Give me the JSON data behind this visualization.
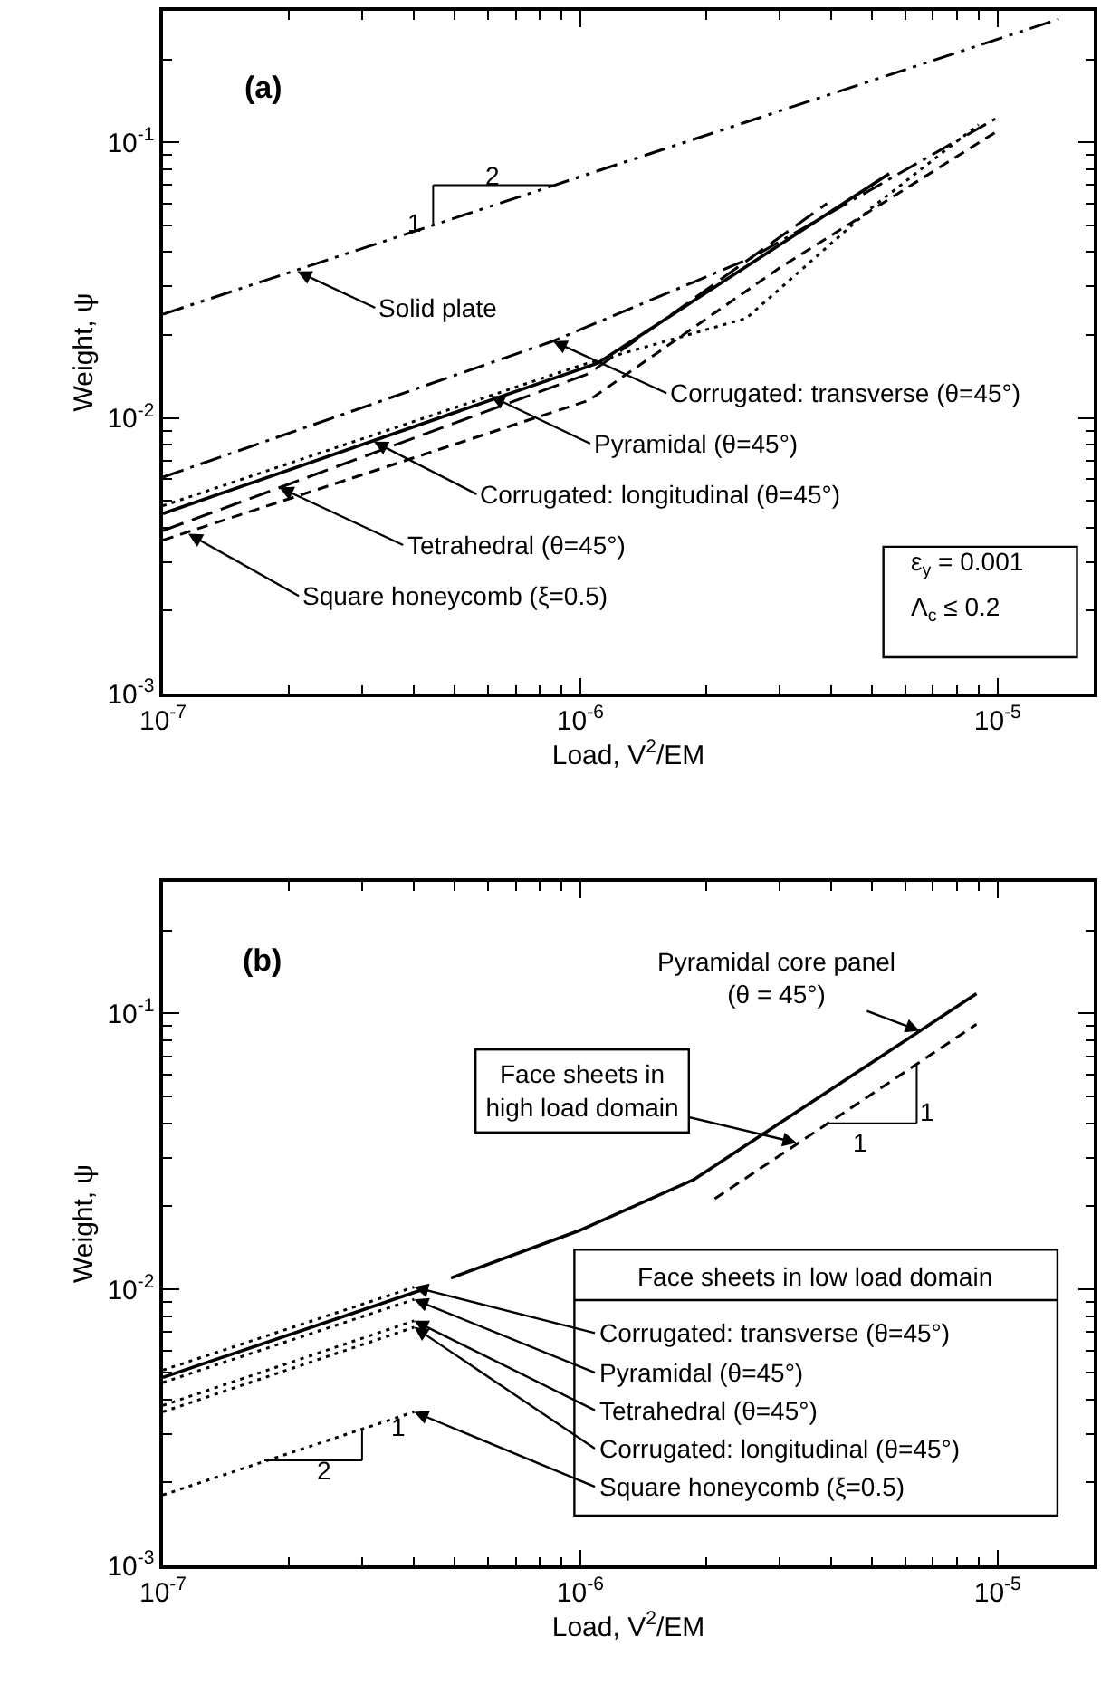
{
  "chart_data": [
    {
      "type": "line",
      "title": "(a)",
      "xlabel": "Load, V$^{2}$/EM",
      "ylabel": "Weight, ψ",
      "log": "xy",
      "xlim": [
        1e-07,
        1.7e-05
      ],
      "ylim": [
        0.001,
        0.3
      ],
      "xticks": [
        {
          "value": 1e-07,
          "label": "10$^{-7}$"
        },
        {
          "value": 2e-07,
          "label": null
        },
        {
          "value": 3e-07,
          "label": null
        },
        {
          "value": 4e-07,
          "label": null
        },
        {
          "value": 5e-07,
          "label": null
        },
        {
          "value": 6e-07,
          "label": null
        },
        {
          "value": 7e-07,
          "label": null
        },
        {
          "value": 8e-07,
          "label": null
        },
        {
          "value": 9e-07,
          "label": null
        },
        {
          "value": 1e-06,
          "label": "10$^{-6}$"
        },
        {
          "value": 2e-06,
          "label": null
        },
        {
          "value": 3e-06,
          "label": null
        },
        {
          "value": 4e-06,
          "label": null
        },
        {
          "value": 5e-06,
          "label": null
        },
        {
          "value": 6e-06,
          "label": null
        },
        {
          "value": 7e-06,
          "label": null
        },
        {
          "value": 8e-06,
          "label": null
        },
        {
          "value": 9e-06,
          "label": null
        },
        {
          "value": 1e-05,
          "label": "10$^{-5}$"
        }
      ],
      "yticks": [
        {
          "value": 0.001,
          "label": "10$^{-3}$"
        },
        {
          "value": 0.002,
          "label": null
        },
        {
          "value": 0.003,
          "label": null
        },
        {
          "value": 0.004,
          "label": null
        },
        {
          "value": 0.005,
          "label": null
        },
        {
          "value": 0.006,
          "label": null
        },
        {
          "value": 0.007,
          "label": null
        },
        {
          "value": 0.008,
          "label": null
        },
        {
          "value": 0.009,
          "label": null
        },
        {
          "value": 0.01,
          "label": "10$^{-2}$"
        },
        {
          "value": 0.02,
          "label": null
        },
        {
          "value": 0.03,
          "label": null
        },
        {
          "value": 0.04,
          "label": null
        },
        {
          "value": 0.05,
          "label": null
        },
        {
          "value": 0.06,
          "label": null
        },
        {
          "value": 0.07,
          "label": null
        },
        {
          "value": 0.08,
          "label": null
        },
        {
          "value": 0.09,
          "label": null
        },
        {
          "value": 0.1,
          "label": "10$^{-1}$"
        },
        {
          "value": 0.2,
          "label": null
        }
      ],
      "series": [
        {
          "color": "#000000",
          "line_style": "dashdotdot",
          "x": [
            1e-07,
            1.4e-05
          ],
          "values": [
            0.0238,
            0.28
          ]
        },
        {
          "color": "#000000",
          "line_style": "dashdot",
          "x": [
            1e-07,
            8.6e-07,
            2.56e-06,
            9.9e-06
          ],
          "values": [
            0.0061,
            0.019,
            0.038,
            0.122
          ]
        },
        {
          "color": "#000000",
          "line_style": "dotted",
          "x": [
            1e-07,
            1e-06,
            2.5e-06,
            5e-06,
            9e-06
          ],
          "values": [
            0.0048,
            0.0155,
            0.023,
            0.058,
            0.116
          ]
        },
        {
          "color": "#000000",
          "line_style": "solid",
          "x": [
            1e-07,
            1.1e-06,
            5.5e-06
          ],
          "values": [
            0.0045,
            0.0158,
            0.077
          ]
        },
        {
          "color": "#000000",
          "line_style": "longdash",
          "x": [
            1e-07,
            1.05e-06,
            3.9e-06
          ],
          "values": [
            0.0039,
            0.0145,
            0.06
          ]
        },
        {
          "color": "#000000",
          "line_style": "dashed",
          "x": [
            1e-07,
            1.05e-06,
            3e-06,
            1e-05
          ],
          "values": [
            0.0036,
            0.0116,
            0.035,
            0.11
          ]
        }
      ],
      "annotations": [
        {
          "text": "Solid plate",
          "x": 2.1e-07,
          "y": 0.034
        },
        {
          "text": "Corrugated: transverse (θ=45°)",
          "x": 8.6e-07,
          "y": 0.019
        },
        {
          "text": "Pyramidal (θ=45°)",
          "x": 6.1e-07,
          "y": 0.012
        },
        {
          "text": "Corrugated: longitudinal (θ=45°)",
          "x": 3.2e-07,
          "y": 0.0082
        },
        {
          "text": "Tetrahedral (θ=45°)",
          "x": 1.9e-07,
          "y": 0.0056
        },
        {
          "text": "Square honeycomb (ξ=0.5)",
          "x": 1.15e-07,
          "y": 0.0038
        },
        "ε$_{y}$ = 0.001",
        "Λ$_{c}$ ≤ 0.2",
        {
          "text": "1",
          "x": 4.44e-07,
          "y": 0.05
        },
        {
          "text": "2",
          "x": 8.6e-07,
          "y": 0.07
        }
      ]
    },
    {
      "type": "line",
      "title": "(b)",
      "xlabel": "Load, V$^{2}$/EM",
      "ylabel": "Weight, ψ",
      "log": "xy",
      "xlim": [
        1e-07,
        1.7e-05
      ],
      "ylim": [
        0.001,
        0.3
      ],
      "xticks": [
        {
          "value": 1e-07,
          "label": "10$^{-7}$"
        },
        {
          "value": 2e-07,
          "label": null
        },
        {
          "value": 3e-07,
          "label": null
        },
        {
          "value": 4e-07,
          "label": null
        },
        {
          "value": 5e-07,
          "label": null
        },
        {
          "value": 6e-07,
          "label": null
        },
        {
          "value": 7e-07,
          "label": null
        },
        {
          "value": 8e-07,
          "label": null
        },
        {
          "value": 9e-07,
          "label": null
        },
        {
          "value": 1e-06,
          "label": "10$^{-6}$"
        },
        {
          "value": 2e-06,
          "label": null
        },
        {
          "value": 3e-06,
          "label": null
        },
        {
          "value": 4e-06,
          "label": null
        },
        {
          "value": 5e-06,
          "label": null
        },
        {
          "value": 6e-06,
          "label": null
        },
        {
          "value": 7e-06,
          "label": null
        },
        {
          "value": 8e-06,
          "label": null
        },
        {
          "value": 9e-06,
          "label": null
        },
        {
          "value": 1e-05,
          "label": "10$^{-5}$"
        }
      ],
      "yticks": [
        {
          "value": 0.001,
          "label": "10$^{-3}$"
        },
        {
          "value": 0.002,
          "label": null
        },
        {
          "value": 0.003,
          "label": null
        },
        {
          "value": 0.004,
          "label": null
        },
        {
          "value": 0.005,
          "label": null
        },
        {
          "value": 0.006,
          "label": null
        },
        {
          "value": 0.007,
          "label": null
        },
        {
          "value": 0.008,
          "label": null
        },
        {
          "value": 0.009,
          "label": null
        },
        {
          "value": 0.01,
          "label": "10$^{-2}$"
        },
        {
          "value": 0.02,
          "label": null
        },
        {
          "value": 0.03,
          "label": null
        },
        {
          "value": 0.04,
          "label": null
        },
        {
          "value": 0.05,
          "label": null
        },
        {
          "value": 0.06,
          "label": null
        },
        {
          "value": 0.07,
          "label": null
        },
        {
          "value": 0.08,
          "label": null
        },
        {
          "value": 0.09,
          "label": null
        },
        {
          "value": 0.1,
          "label": "10$^{-1}$"
        },
        {
          "value": 0.2,
          "label": null
        }
      ],
      "series": [
        {
          "color": "#000000",
          "line_style": "dotted",
          "x": [
            1e-07,
            4e-07
          ],
          "values": [
            0.0051,
            0.0102
          ]
        },
        {
          "color": "#000000",
          "line_style": "solid",
          "x": [
            1e-07,
            4.2e-07
          ],
          "values": [
            0.0048,
            0.01
          ]
        },
        {
          "color": "#000000",
          "line_style": "dotted",
          "x": [
            1e-07,
            4e-07
          ],
          "values": [
            0.0046,
            0.0092
          ]
        },
        {
          "color": "#000000",
          "line_style": "dotted",
          "x": [
            1e-07,
            4e-07
          ],
          "values": [
            0.0038,
            0.0077
          ]
        },
        {
          "color": "#000000",
          "line_style": "dotted",
          "x": [
            1e-07,
            4e-07
          ],
          "values": [
            0.0036,
            0.0073
          ]
        },
        {
          "color": "#000000",
          "line_style": "dotted",
          "x": [
            1e-07,
            4e-07
          ],
          "values": [
            0.0018,
            0.0036
          ]
        },
        {
          "color": "#000000",
          "line_style": "solid",
          "x": [
            4.9e-07,
            9.9e-07,
            1.87e-06,
            8.9e-06
          ],
          "values": [
            0.011,
            0.0163,
            0.025,
            0.118
          ]
        },
        {
          "color": "#000000",
          "line_style": "dashed",
          "x": [
            2.1e-06,
            8.9e-06
          ],
          "values": [
            0.0213,
            0.0914
          ]
        }
      ],
      "annotations": [
        {
          "text": "Pyramidal core panel\n(θ = 45°)",
          "x": 6.5e-06,
          "y": 0.0866
        },
        {
          "text": "Face sheets in\nhigh load domain",
          "x": 3.3e-06,
          "y": 0.034
        },
        "Face sheets in low load domain",
        {
          "text": "Corrugated: transverse (θ=45°)",
          "x": 4e-07,
          "y": 0.0102
        },
        {
          "text": "Pyramidal (θ=45°)",
          "x": 4e-07,
          "y": 0.0092
        },
        {
          "text": "Tetrahedral (θ=45°)",
          "x": 4e-07,
          "y": 0.0077
        },
        {
          "text": "Corrugated: longitudinal (θ=45°)",
          "x": 4e-07,
          "y": 0.0073
        },
        {
          "text": "Square honeycomb (ξ=0.5)",
          "x": 4e-07,
          "y": 0.0036
        },
        {
          "text": "1",
          "x": 3e-07,
          "y": 0.0031
        },
        {
          "text": "2",
          "x": 1.75e-07,
          "y": 0.0024
        },
        {
          "text": "1",
          "x": 6.4e-06,
          "y": 0.065
        },
        {
          "text": "1",
          "x": 3.9e-06,
          "y": 0.04
        }
      ]
    }
  ]
}
